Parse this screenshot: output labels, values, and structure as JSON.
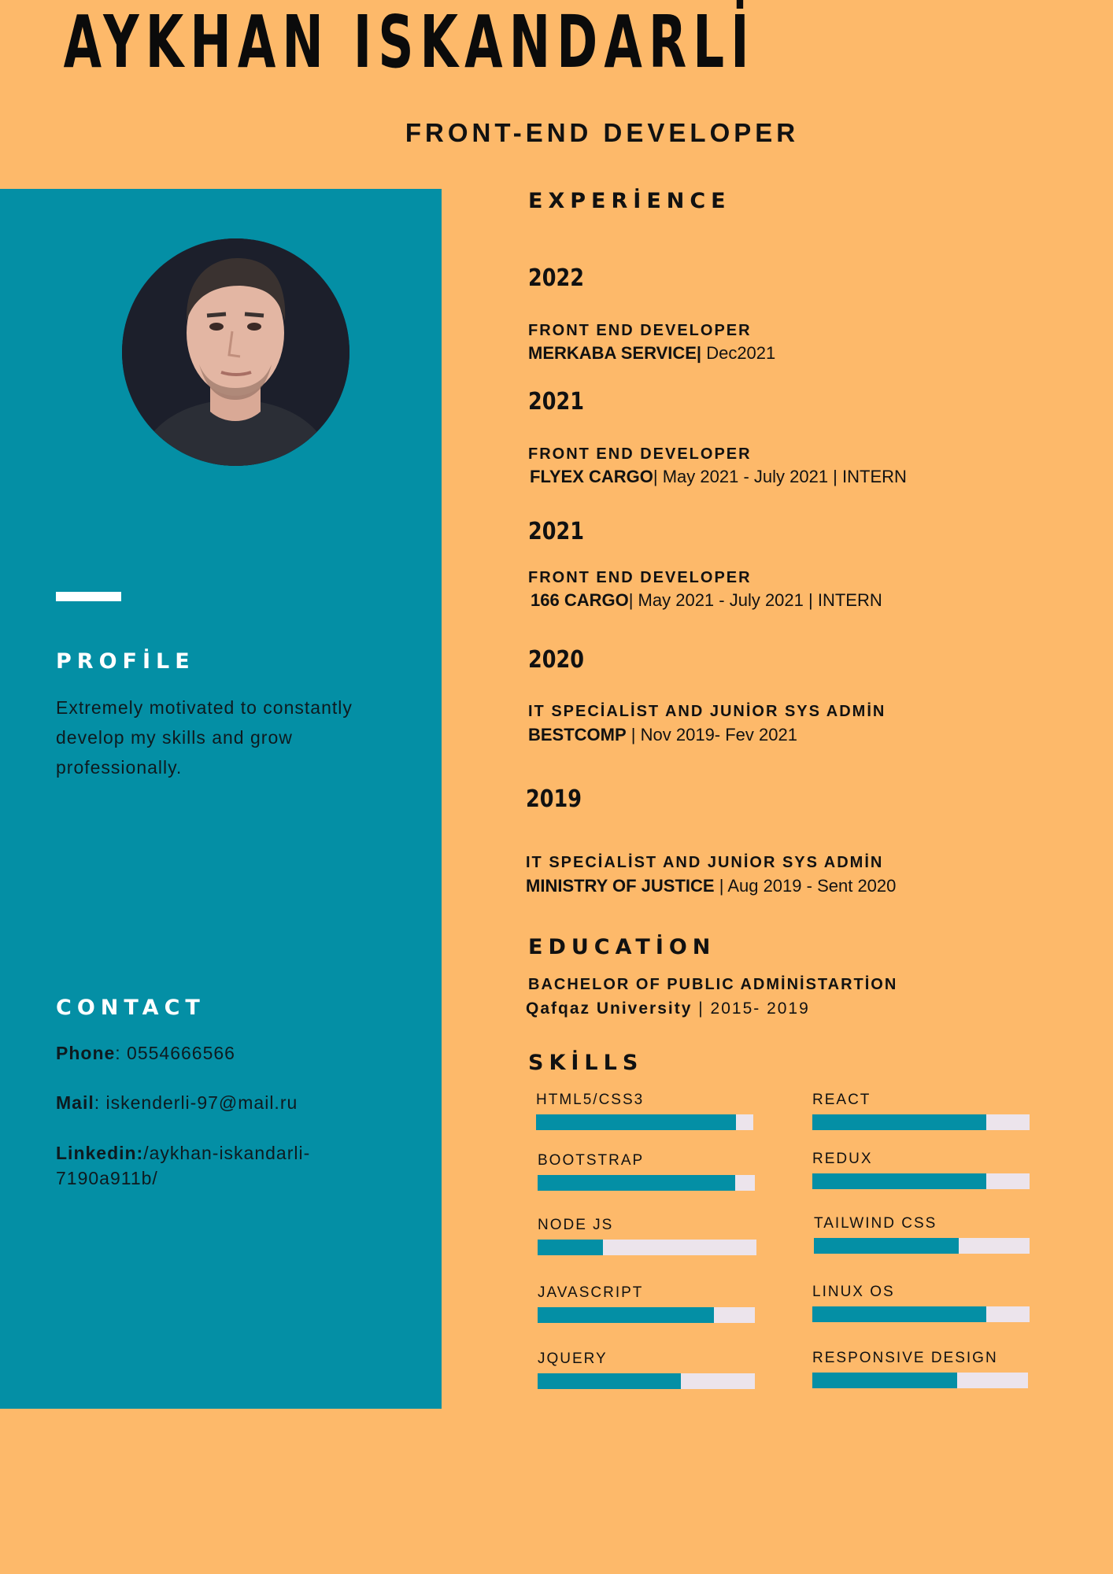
{
  "header": {
    "name": "AYKHAN ISKANDARLİ",
    "role": "FRONT-END DEVELOPER"
  },
  "sidebar": {
    "profile_title": "PROFİLE",
    "profile_text": "Extremely motivated to constantly develop my skills and grow professionally.",
    "contact_title": "CONTACT",
    "phone_label": "Phone",
    "phone_value": ": 0554666566",
    "mail_label": "Mail",
    "mail_value": ":  iskenderli-97@mail.ru",
    "linkedin_label": "Linkedin:",
    "linkedin_value": "/aykhan-iskandarli-7190a911b/"
  },
  "experience": {
    "title": "EXPERİENCE",
    "entries": [
      {
        "year": "2022",
        "title": "FRONT END DEVELOPER",
        "company": "MERKABA SERVICE|",
        "details": "  Dec2021"
      },
      {
        "year": "2021",
        "title": "FRONT END DEVELOPER",
        "company": "FLYEX CARGO",
        "details": "|  May 2021 - July 2021 | INTERN"
      },
      {
        "year": "2021",
        "title": "FRONT END DEVELOPER",
        "company": "166 CARGO",
        "details": "|  May 2021 - July 2021 | INTERN"
      },
      {
        "year": "2020",
        "title": "IT SPECİALİST AND JUNİOR SYS ADMİN",
        "company": "BESTCOMP",
        "details": "  |  Nov 2019- Fev 2021"
      },
      {
        "year": "2019",
        "title": "IT SPECİALİST AND JUNİOR SYS ADMİN",
        "company": "MINISTRY OF JUSTICE",
        "details": "  |  Aug 2019 - Sent 2020"
      }
    ]
  },
  "education": {
    "title": "EDUCATİON",
    "degree": "BACHELOR OF PUBLIC ADMİNİSTARTİON",
    "school": "Qafqaz University",
    "years": "  |  2015- 2019"
  },
  "skills": {
    "title": "SKİLLS",
    "items": [
      {
        "label": "HTML5/CSS3",
        "level": 0.92
      },
      {
        "label": "REACT",
        "level": 0.8
      },
      {
        "label": "BOOTSTRAP",
        "level": 0.91
      },
      {
        "label": "REDUX",
        "level": 0.8
      },
      {
        "label": "NODE JS",
        "level": 0.3
      },
      {
        "label": "TAILWIND CSS",
        "level": 0.67
      },
      {
        "label": "JAVASCRIPT",
        "level": 0.81
      },
      {
        "label": "LINUX OS",
        "level": 0.8
      },
      {
        "label": "JQUERY",
        "level": 0.66
      },
      {
        "label": "RESPONSIVE DESIGN",
        "level": 0.67
      }
    ]
  },
  "colors": {
    "page_background": "#fdb96a",
    "sidebar": "#048fa5",
    "skill_fill": "#048fa5",
    "skill_track": "#ece4ec"
  }
}
